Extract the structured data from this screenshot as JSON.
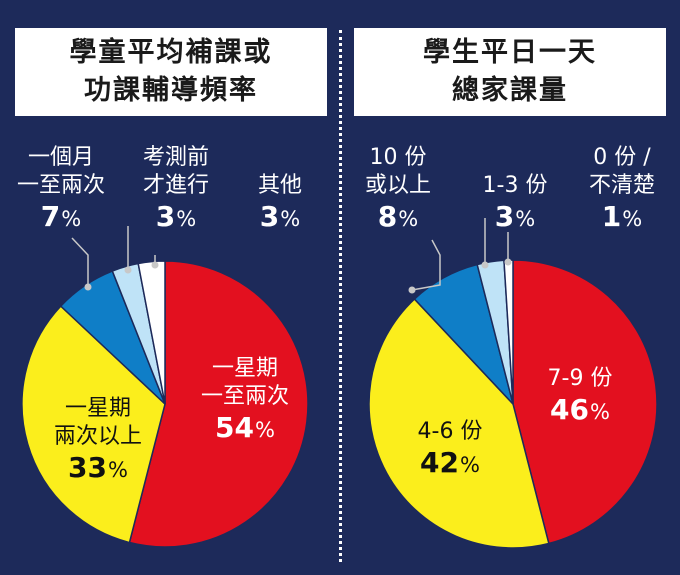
{
  "colors": {
    "background": "#1d2a5a",
    "red": "#e3101f",
    "yellow": "#fbee1c",
    "blue": "#0f7ec7",
    "light_blue": "#bfe3f7",
    "white": "#ffffff"
  },
  "chart_data": [
    {
      "type": "pie",
      "title": [
        "學童平均補課或",
        "功課輔導頻率"
      ],
      "series": [
        {
          "label": [
            "一星期",
            "一至兩次"
          ],
          "value": 54,
          "pct_text": "54",
          "color": "#e3101f"
        },
        {
          "label": [
            "一星期",
            "兩次以上"
          ],
          "value": 33,
          "pct_text": "33",
          "color": "#fbee1c"
        },
        {
          "label": [
            "一個月",
            "一至兩次"
          ],
          "value": 7,
          "pct_text": "7",
          "color": "#0f7ec7"
        },
        {
          "label": [
            "考測前",
            "才進行"
          ],
          "value": 3,
          "pct_text": "3",
          "color": "#bfe3f7"
        },
        {
          "label": [
            "其他"
          ],
          "value": 3,
          "pct_text": "3",
          "color": "#ffffff"
        }
      ],
      "unit": "%"
    },
    {
      "type": "pie",
      "title": [
        "學生平日一天",
        "總家課量"
      ],
      "series": [
        {
          "label": [
            "7-9 份"
          ],
          "value": 46,
          "pct_text": "46",
          "color": "#e3101f"
        },
        {
          "label": [
            "4-6 份"
          ],
          "value": 42,
          "pct_text": "42",
          "color": "#fbee1c"
        },
        {
          "label": [
            "10 份",
            "或以上"
          ],
          "value": 8,
          "pct_text": "8",
          "color": "#0f7ec7"
        },
        {
          "label": [
            "1-3 份"
          ],
          "value": 3,
          "pct_text": "3",
          "color": "#bfe3f7"
        },
        {
          "label": [
            "0 份 /",
            "不清楚"
          ],
          "value": 1,
          "pct_text": "1",
          "color": "#ffffff"
        }
      ],
      "unit": "%"
    }
  ]
}
